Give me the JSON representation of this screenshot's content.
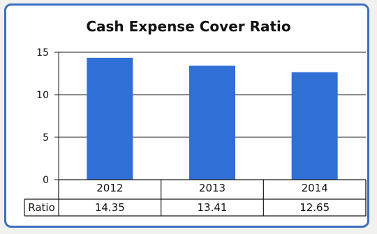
{
  "chart_data": {
    "type": "bar",
    "title": "Cash Expense Cover Ratio",
    "categories": [
      "2012",
      "2013",
      "2014"
    ],
    "series": [
      {
        "name": "Ratio",
        "values": [
          14.35,
          13.41,
          12.65
        ],
        "labels": [
          "14.35",
          "13.41",
          "12.65"
        ]
      }
    ],
    "ylim": [
      0,
      15
    ],
    "yticks": [
      0,
      5,
      10,
      15
    ],
    "grid": true,
    "data_table": true,
    "bar_color": "#2f6fd6"
  }
}
